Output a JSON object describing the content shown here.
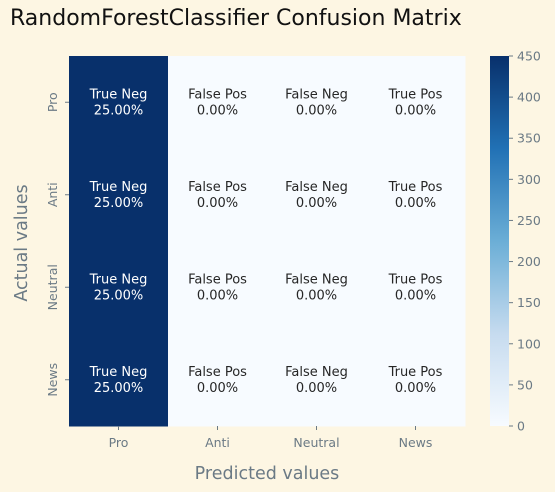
{
  "chart_data": {
    "type": "heatmap",
    "title": "RandomForestClassifier Confusion Matrix",
    "xlabel": "Predicted values",
    "ylabel": "Actual values",
    "x_categories": [
      "Pro",
      "Anti",
      "Neutral",
      "News"
    ],
    "y_categories": [
      "Pro",
      "Anti",
      "Neutral",
      "News"
    ],
    "values": [
      [
        450,
        0,
        0,
        0
      ],
      [
        450,
        0,
        0,
        0
      ],
      [
        450,
        0,
        0,
        0
      ],
      [
        450,
        0,
        0,
        0
      ]
    ],
    "cell_labels": [
      [
        "True Neg\n25.00%",
        "False Pos\n0.00%",
        "False Neg\n0.00%",
        "True Pos\n0.00%"
      ],
      [
        "True Neg\n25.00%",
        "False Pos\n0.00%",
        "False Neg\n0.00%",
        "True Pos\n0.00%"
      ],
      [
        "True Neg\n25.00%",
        "False Pos\n0.00%",
        "False Neg\n0.00%",
        "True Pos\n0.00%"
      ],
      [
        "True Neg\n25.00%",
        "False Pos\n0.00%",
        "False Neg\n0.00%",
        "True Pos\n0.00%"
      ]
    ],
    "colorbar": {
      "min": 0,
      "max": 450,
      "ticks": [
        0,
        50,
        100,
        150,
        200,
        250,
        300,
        350,
        400,
        450
      ]
    },
    "colormap": "Blues",
    "colors": {
      "low": "#f7fbff",
      "high": "#08306b",
      "background": "#fdf6e3"
    }
  }
}
